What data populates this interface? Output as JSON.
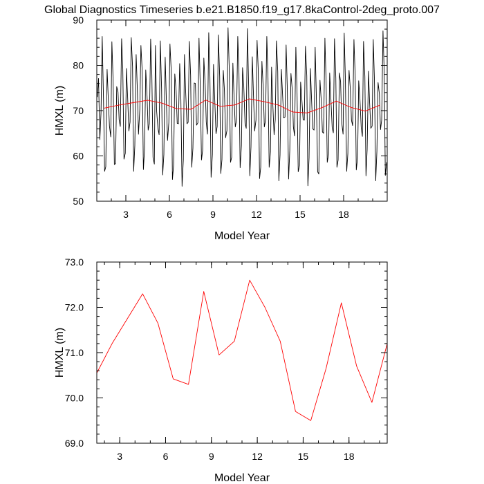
{
  "figure_title": "Global Diagnostics Timeseries b.e21.B1850.f19_g17.8kaControl-2deg_proto.007",
  "chart_data": [
    {
      "type": "line",
      "xlabel": "Model Year",
      "ylabel": "HMXL (m)",
      "xlim": [
        1,
        21
      ],
      "ylim": [
        50,
        90
      ],
      "x_ticks": [
        3,
        6,
        9,
        12,
        15,
        18
      ],
      "x_tick_labels": [
        "3",
        "6",
        "9",
        "12",
        "15",
        "18"
      ],
      "y_ticks": [
        50,
        60,
        70,
        80,
        90
      ],
      "y_tick_labels": [
        "50",
        "60",
        "70",
        "80",
        "90"
      ],
      "series": [
        {
          "color": "#000000",
          "x": [
            1.04,
            1.12,
            1.21,
            1.29,
            1.37,
            1.46,
            1.54,
            1.62,
            1.71,
            1.79,
            1.87,
            1.96,
            2.04,
            2.12,
            2.21,
            2.29,
            2.37,
            2.46,
            2.54,
            2.62,
            2.71,
            2.79,
            2.87,
            2.96,
            3.04,
            3.12,
            3.21,
            3.29,
            3.37,
            3.46,
            3.54,
            3.62,
            3.71,
            3.79,
            3.87,
            3.96,
            4.04,
            4.12,
            4.21,
            4.29,
            4.37,
            4.46,
            4.54,
            4.62,
            4.71,
            4.79,
            4.87,
            4.96,
            5.04,
            5.12,
            5.21,
            5.29,
            5.37,
            5.46,
            5.54,
            5.62,
            5.71,
            5.79,
            5.87,
            5.96,
            6.04,
            6.12,
            6.21,
            6.29,
            6.37,
            6.46,
            6.54,
            6.62,
            6.71,
            6.79,
            6.87,
            6.96,
            7.04,
            7.12,
            7.21,
            7.29,
            7.37,
            7.46,
            7.54,
            7.62,
            7.71,
            7.79,
            7.87,
            7.96,
            8.04,
            8.12,
            8.21,
            8.29,
            8.37,
            8.46,
            8.54,
            8.62,
            8.71,
            8.79,
            8.87,
            8.96,
            9.04,
            9.12,
            9.21,
            9.29,
            9.37,
            9.46,
            9.54,
            9.62,
            9.71,
            9.79,
            9.87,
            9.96,
            10.04,
            10.12,
            10.21,
            10.29,
            10.37,
            10.46,
            10.54,
            10.62,
            10.71,
            10.79,
            10.87,
            10.96,
            11.04,
            11.12,
            11.21,
            11.29,
            11.37,
            11.46,
            11.54,
            11.62,
            11.71,
            11.79,
            11.87,
            11.96,
            12.04,
            12.12,
            12.21,
            12.29,
            12.37,
            12.46,
            12.54,
            12.62,
            12.71,
            12.79,
            12.87,
            12.96,
            13.04,
            13.12,
            13.21,
            13.29,
            13.37,
            13.46,
            13.54,
            13.62,
            13.71,
            13.79,
            13.87,
            13.96,
            14.04,
            14.12,
            14.21,
            14.29,
            14.37,
            14.46,
            14.54,
            14.62,
            14.71,
            14.79,
            14.87,
            14.96,
            15.04,
            15.12,
            15.21,
            15.29,
            15.37,
            15.46,
            15.54,
            15.62,
            15.71,
            15.79,
            15.87,
            15.96,
            16.04,
            16.12,
            16.21,
            16.29,
            16.37,
            16.46,
            16.54,
            16.62,
            16.71,
            16.79,
            16.87,
            16.96,
            17.04,
            17.12,
            17.21,
            17.29,
            17.37,
            17.46,
            17.54,
            17.62,
            17.71,
            17.79,
            17.87,
            17.96,
            18.04,
            18.12,
            18.21,
            18.29,
            18.37,
            18.46,
            18.54,
            18.62,
            18.71,
            18.79,
            18.87,
            18.96,
            19.04,
            19.12,
            19.21,
            19.29,
            19.37,
            19.46,
            19.54,
            19.62,
            19.71,
            19.79,
            19.87,
            19.96,
            20.04,
            20.12,
            20.21,
            20.29,
            20.37,
            20.46,
            20.54,
            20.62,
            20.71,
            20.79,
            20.87,
            20.96
          ],
          "y": [
            73.0,
            77.1,
            63.6,
            69.5,
            86.4,
            72.5,
            56.6,
            57.6,
            79.1,
            72.7,
            66.6,
            64.2,
            85.2,
            77.1,
            58.1,
            58.3,
            75.3,
            74.1,
            68.0,
            66.5,
            85.9,
            79.2,
            59.3,
            60.6,
            79.3,
            73.4,
            65.5,
            67.5,
            86.1,
            79.7,
            56.6,
            62.3,
            82.4,
            74.9,
            64.8,
            70.3,
            84.4,
            79.3,
            57.0,
            61.6,
            79.0,
            73.1,
            65.7,
            67.1,
            85.8,
            77.9,
            59.7,
            58.2,
            84.4,
            70.0,
            66.1,
            64.7,
            85.4,
            74.8,
            55.8,
            60.3,
            81.8,
            72.3,
            63.4,
            67.4,
            84.7,
            79.3,
            54.8,
            58.0,
            78.1,
            74.5,
            67.2,
            67.1,
            80.4,
            72.5,
            53.3,
            59.2,
            82.4,
            74.3,
            67.1,
            67.4,
            85.3,
            77.8,
            57.5,
            61.7,
            76.1,
            76.0,
            66.8,
            67.3,
            86.0,
            76.2,
            59.1,
            61.3,
            81.6,
            75.8,
            67.5,
            64.8,
            87.2,
            77.5,
            55.3,
            60.3,
            80.2,
            72.8,
            64.9,
            66.5,
            86.7,
            77.6,
            56.1,
            59.2,
            78.9,
            74.5,
            64.0,
            65.6,
            88.3,
            79.6,
            58.6,
            59.7,
            80.5,
            72.3,
            66.4,
            67.8,
            86.4,
            78.3,
            57.4,
            62.3,
            79.5,
            75.7,
            67.2,
            66.1,
            88.1,
            75.0,
            55.6,
            62.0,
            81.9,
            73.4,
            65.5,
            67.9,
            85.5,
            79.1,
            55.0,
            57.5,
            80.9,
            75.0,
            66.4,
            67.8,
            86.4,
            77.2,
            57.5,
            60.9,
            79.6,
            71.6,
            64.7,
            68.0,
            85.4,
            78.7,
            54.5,
            60.2,
            79.1,
            73.8,
            68.4,
            68.6,
            84.5,
            75.1,
            54.9,
            61.2,
            78.2,
            74.6,
            66.4,
            64.4,
            84.0,
            73.8,
            56.5,
            57.9,
            76.3,
            72.6,
            68.0,
            67.9,
            84.2,
            77.7,
            53.4,
            59.6,
            79.3,
            72.6,
            66.0,
            65.7,
            84.0,
            73.4,
            56.5,
            56.0,
            76.7,
            72.0,
            65.3,
            65.0,
            86.0,
            76.5,
            58.6,
            60.4,
            78.3,
            72.8,
            66.3,
            65.1,
            85.9,
            77.2,
            57.5,
            59.1,
            78.3,
            76.4,
            67.2,
            64.8,
            87.1,
            77.2,
            56.6,
            60.5,
            78.9,
            74.7,
            67.9,
            66.7,
            85.7,
            78.1,
            56.9,
            59.6,
            76.6,
            72.8,
            66.3,
            64.3,
            85.3,
            77.5,
            55.6,
            61.4,
            78.7,
            71.7,
            66.1,
            66.6,
            85.7,
            77.1,
            54.5,
            61.0,
            76.2,
            73.7,
            65.8,
            67.9,
            87.6,
            79.0,
            55.7,
            58.6
          ]
        },
        {
          "color": "#ff0000",
          "x": [
            1.5,
            2.5,
            3.5,
            4.5,
            5.5,
            6.5,
            7.5,
            8.5,
            9.5,
            10.5,
            11.5,
            12.5,
            13.5,
            14.5,
            15.5,
            16.5,
            17.5,
            18.5,
            19.5,
            20.5
          ],
          "y": [
            70.55,
            71.2,
            71.75,
            72.3,
            71.65,
            70.42,
            70.3,
            72.35,
            70.95,
            71.25,
            72.6,
            72.0,
            71.25,
            69.7,
            69.5,
            70.65,
            72.1,
            70.7,
            69.9,
            71.2
          ]
        }
      ]
    },
    {
      "type": "line",
      "xlabel": "Model Year",
      "ylabel": "HMXL (m)",
      "xlim": [
        1.5,
        20.5
      ],
      "ylim": [
        69.0,
        73.0
      ],
      "x_ticks": [
        3,
        6,
        9,
        12,
        15,
        18
      ],
      "x_tick_labels": [
        "3",
        "6",
        "9",
        "12",
        "15",
        "18"
      ],
      "y_ticks": [
        69.0,
        70.0,
        71.0,
        72.0,
        73.0
      ],
      "y_tick_labels": [
        "69.0",
        "70.0",
        "71.0",
        "72.0",
        "73.0"
      ],
      "series": [
        {
          "color": "#ff0000",
          "x": [
            1.5,
            2.5,
            3.5,
            4.5,
            5.5,
            6.5,
            7.5,
            8.5,
            9.5,
            10.5,
            11.5,
            12.5,
            13.5,
            14.5,
            15.5,
            16.5,
            17.5,
            18.5,
            19.5,
            20.5
          ],
          "y": [
            70.55,
            71.2,
            71.75,
            72.3,
            71.65,
            70.42,
            70.3,
            72.35,
            70.95,
            71.25,
            72.6,
            72.0,
            71.25,
            69.7,
            69.5,
            70.65,
            72.1,
            70.7,
            69.9,
            71.2
          ]
        }
      ]
    }
  ]
}
